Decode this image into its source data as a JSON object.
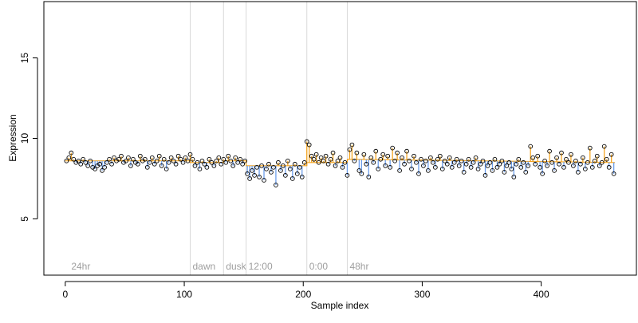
{
  "chart_data": {
    "type": "scatter",
    "xlabel": "Sample index",
    "ylabel": "Expression",
    "xlim": [
      -18,
      480
    ],
    "ylim": [
      1.5,
      18.5
    ],
    "xticks": [
      0,
      100,
      200,
      300,
      400
    ],
    "yticks": [
      5,
      10,
      15
    ],
    "grid": false,
    "legend": "none",
    "colors": {
      "up": "#f5a623",
      "down": "#6d9eeb",
      "baseline": "#f5a623",
      "point": "#000000",
      "marker": "#d9d9d9",
      "marker_text": "#9e9e9e"
    },
    "markers": [
      {
        "x": 3,
        "label": "24hr"
      },
      {
        "x": 105,
        "label": "dawn"
      },
      {
        "x": 133,
        "label": "dusk"
      },
      {
        "x": 152,
        "label": "12:00"
      },
      {
        "x": 203,
        "label": "0:00"
      },
      {
        "x": 237,
        "label": "48hr"
      }
    ],
    "baseline": [
      [
        0,
        8.6
      ],
      [
        105,
        8.6
      ],
      [
        105,
        8.5
      ],
      [
        133,
        8.5
      ],
      [
        133,
        8.6
      ],
      [
        152,
        8.6
      ],
      [
        152,
        8.3
      ],
      [
        203,
        8.3
      ],
      [
        203,
        8.5
      ],
      [
        237,
        8.5
      ],
      [
        237,
        8.7
      ],
      [
        462,
        8.5
      ]
    ],
    "series": [
      {
        "x": [
          1,
          3,
          5,
          7,
          9,
          11,
          13,
          15,
          17,
          19,
          21,
          23,
          25,
          27,
          29,
          31,
          33,
          35,
          37,
          39,
          41,
          43,
          45,
          47,
          49,
          51,
          53,
          55,
          57,
          59,
          61,
          63,
          65,
          67,
          69,
          71,
          73,
          75,
          77,
          79,
          81,
          83,
          85,
          87,
          89,
          91,
          93,
          95,
          97,
          99
        ],
        "y": [
          8.6,
          8.8,
          9.1,
          8.7,
          8.5,
          8.6,
          8.4,
          8.7,
          8.5,
          8.3,
          8.6,
          8.2,
          8.1,
          8.3,
          8.4,
          8.0,
          8.2,
          8.5,
          8.7,
          8.4,
          8.8,
          8.6,
          8.7,
          8.9,
          8.5,
          8.6,
          8.8,
          8.3,
          8.7,
          8.5,
          8.4,
          8.9,
          8.6,
          8.7,
          8.2,
          8.5,
          8.8,
          8.4,
          8.6,
          8.9,
          8.3,
          8.7,
          8.1,
          8.5,
          8.8,
          8.6,
          8.4,
          8.9,
          8.7,
          8.5
        ]
      },
      {
        "x": [
          101,
          103,
          105,
          107,
          109,
          111,
          113,
          115,
          117,
          119,
          121,
          123,
          125,
          127,
          129,
          131,
          133,
          135,
          137,
          139,
          141,
          143,
          145,
          147,
          149,
          151
        ],
        "y": [
          8.8,
          8.6,
          9.0,
          8.7,
          8.3,
          8.5,
          8.1,
          8.6,
          8.4,
          8.2,
          8.7,
          8.5,
          8.3,
          8.6,
          8.8,
          8.4,
          8.7,
          8.5,
          8.9,
          8.6,
          8.3,
          8.8,
          8.5,
          8.7,
          8.4,
          8.6
        ]
      },
      {
        "x": [
          153,
          155,
          157,
          159,
          161,
          163,
          165,
          167,
          169,
          171,
          173,
          175,
          177,
          179,
          181,
          183,
          185,
          187,
          189,
          191,
          193,
          195,
          197,
          199,
          201
        ],
        "y": [
          7.8,
          7.5,
          8.0,
          7.7,
          8.2,
          7.6,
          8.3,
          7.4,
          8.1,
          8.4,
          7.9,
          8.2,
          7.1,
          8.5,
          8.0,
          8.3,
          7.7,
          8.6,
          8.1,
          7.5,
          8.4,
          7.8,
          8.2,
          7.6,
          8.5
        ]
      },
      {
        "x": [
          203,
          205,
          207,
          209,
          211,
          213,
          215,
          217,
          219,
          221,
          223,
          225,
          227,
          229,
          231,
          233,
          235
        ],
        "y": [
          9.8,
          9.6,
          8.9,
          8.7,
          9.0,
          8.5,
          8.8,
          8.6,
          8.9,
          8.4,
          8.7,
          9.1,
          8.3,
          8.6,
          8.8,
          8.2,
          8.5
        ]
      },
      {
        "x": [
          237,
          239,
          241,
          243,
          245,
          247,
          249,
          251,
          253,
          255,
          257,
          259,
          261,
          263,
          265,
          267,
          269,
          271,
          273,
          275,
          277,
          279,
          281,
          283,
          285,
          287,
          289,
          291,
          293,
          295,
          297,
          299,
          301,
          303,
          305,
          307,
          309,
          311,
          313,
          315,
          317,
          319,
          321,
          323,
          325,
          327,
          329,
          331,
          333,
          335,
          337,
          339,
          341,
          343,
          345,
          347,
          349,
          351,
          353,
          355,
          357,
          359,
          361,
          363,
          365,
          367,
          369,
          371,
          373,
          375,
          377,
          379,
          381,
          383,
          385,
          387,
          389,
          391,
          393,
          395,
          397,
          399,
          401,
          403,
          405,
          407,
          409,
          411,
          413,
          415,
          417,
          419,
          421,
          423,
          425,
          427,
          429,
          431,
          433,
          435,
          437,
          439,
          441,
          443,
          445,
          447,
          449,
          451,
          453,
          455,
          457,
          459,
          461
        ],
        "y": [
          7.7,
          9.3,
          9.6,
          8.6,
          9.1,
          8.0,
          7.8,
          9.0,
          8.4,
          7.6,
          8.8,
          8.5,
          9.2,
          8.1,
          8.7,
          9.0,
          8.3,
          8.9,
          8.2,
          9.4,
          8.6,
          9.1,
          8.0,
          8.8,
          8.4,
          9.2,
          8.6,
          8.1,
          8.9,
          8.5,
          7.8,
          8.7,
          8.3,
          8.6,
          8.0,
          8.8,
          8.5,
          8.2,
          8.7,
          8.9,
          8.1,
          8.6,
          8.4,
          8.8,
          8.2,
          8.5,
          8.7,
          8.3,
          8.6,
          7.9,
          8.4,
          8.7,
          8.2,
          8.5,
          8.8,
          8.1,
          8.4,
          8.6,
          7.7,
          8.3,
          8.5,
          8.0,
          8.7,
          8.2,
          8.4,
          8.6,
          7.9,
          8.3,
          8.5,
          8.1,
          7.6,
          8.4,
          8.7,
          8.2,
          8.5,
          7.9,
          8.3,
          9.5,
          8.8,
          8.4,
          8.9,
          8.2,
          7.8,
          8.6,
          8.3,
          9.2,
          8.5,
          8.0,
          8.8,
          8.4,
          9.1,
          8.2,
          8.7,
          8.5,
          9.0,
          8.3,
          8.6,
          7.9,
          8.4,
          8.8,
          8.1,
          8.5,
          9.4,
          8.2,
          8.6,
          8.9,
          8.3,
          8.5,
          9.5,
          8.7,
          8.2,
          9.0,
          7.8
        ]
      }
    ]
  }
}
